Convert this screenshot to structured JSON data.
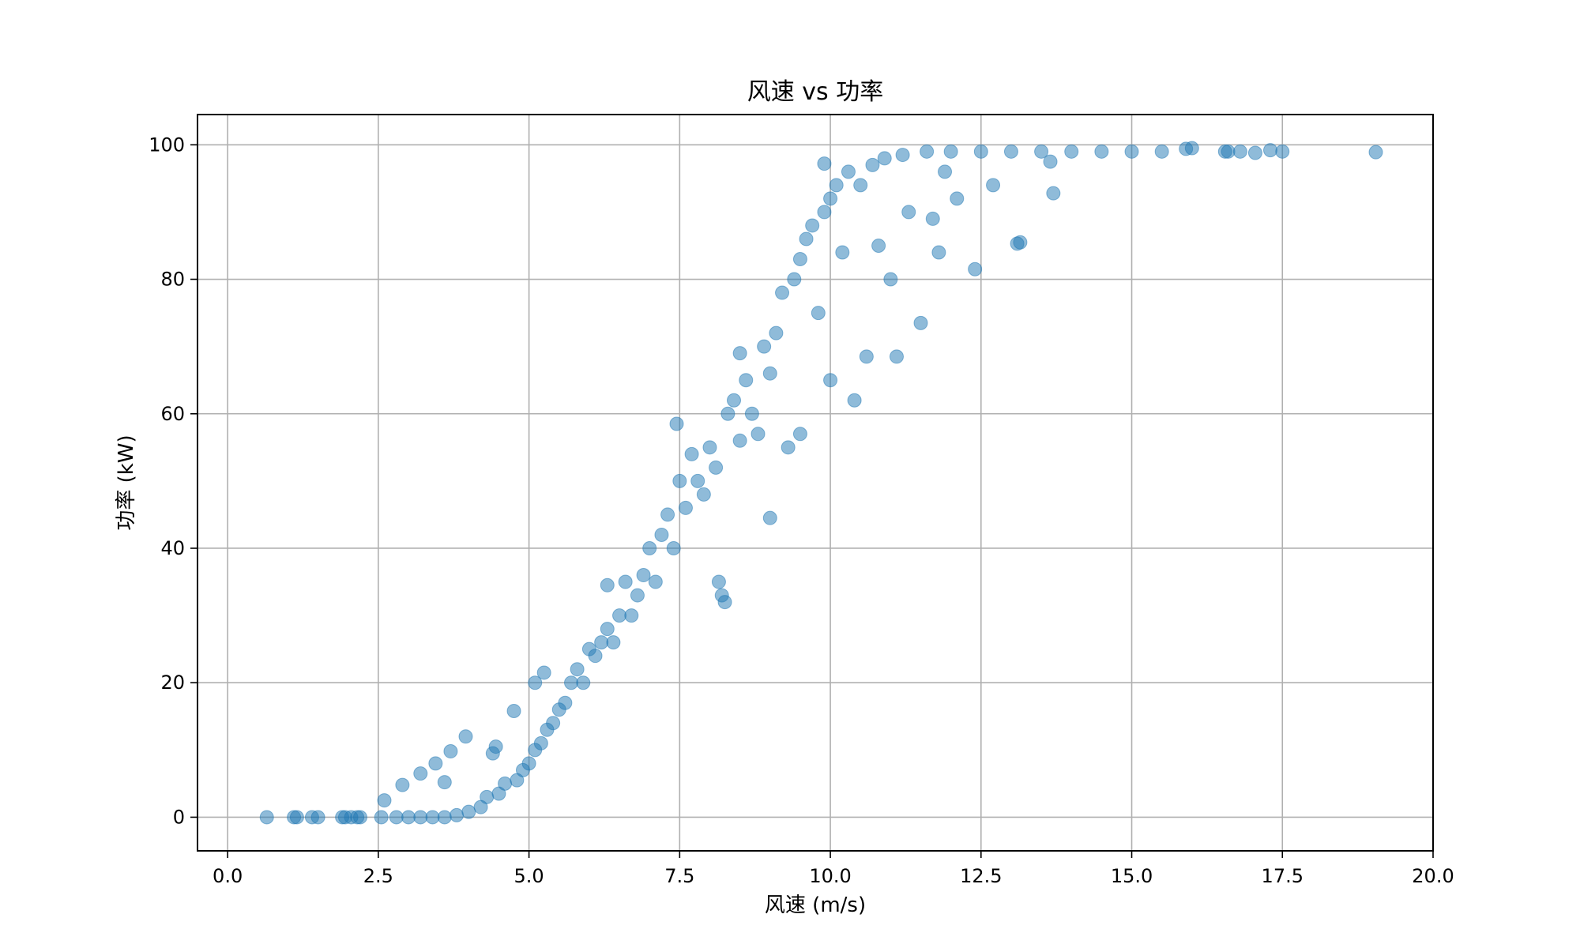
{
  "chart_data": {
    "type": "scatter",
    "title": "风速 vs 功率",
    "xlabel": "风速 (m/s)",
    "ylabel": "功率 (kW)",
    "xlim": [
      -0.5,
      20.0
    ],
    "ylim": [
      -5,
      104.5
    ],
    "xticks": [
      0.0,
      2.5,
      5.0,
      7.5,
      10.0,
      12.5,
      15.0,
      17.5,
      20.0
    ],
    "xtick_labels": [
      "0.0",
      "2.5",
      "5.0",
      "7.5",
      "10.0",
      "12.5",
      "15.0",
      "17.5",
      "20.0"
    ],
    "yticks": [
      0,
      20,
      40,
      60,
      80,
      100
    ],
    "ytick_labels": [
      "0",
      "20",
      "40",
      "60",
      "80",
      "100"
    ],
    "grid": true,
    "marker_color": "#1f77b4",
    "marker_alpha": 0.5,
    "points": [
      [
        0.65,
        0
      ],
      [
        1.1,
        0
      ],
      [
        1.15,
        0
      ],
      [
        1.4,
        0
      ],
      [
        1.5,
        0
      ],
      [
        1.9,
        0
      ],
      [
        1.95,
        0
      ],
      [
        2.05,
        0
      ],
      [
        2.15,
        0
      ],
      [
        2.2,
        0
      ],
      [
        2.55,
        0
      ],
      [
        2.6,
        2.5
      ],
      [
        2.8,
        0
      ],
      [
        2.9,
        4.8
      ],
      [
        3.0,
        0
      ],
      [
        3.2,
        0
      ],
      [
        3.2,
        6.5
      ],
      [
        3.4,
        0
      ],
      [
        3.45,
        8
      ],
      [
        3.6,
        0
      ],
      [
        3.6,
        5.2
      ],
      [
        3.7,
        9.8
      ],
      [
        3.8,
        0.3
      ],
      [
        3.95,
        12
      ],
      [
        4.0,
        0.8
      ],
      [
        4.2,
        1.5
      ],
      [
        4.3,
        3
      ],
      [
        4.4,
        9.5
      ],
      [
        4.45,
        10.5
      ],
      [
        4.5,
        3.5
      ],
      [
        4.6,
        5
      ],
      [
        4.75,
        15.8
      ],
      [
        4.8,
        5.5
      ],
      [
        4.9,
        7
      ],
      [
        5.0,
        8
      ],
      [
        5.1,
        10
      ],
      [
        5.1,
        20
      ],
      [
        5.2,
        11
      ],
      [
        5.3,
        13
      ],
      [
        5.25,
        21.5
      ],
      [
        5.4,
        14
      ],
      [
        5.5,
        16
      ],
      [
        5.6,
        17
      ],
      [
        5.7,
        20
      ],
      [
        5.8,
        22
      ],
      [
        5.9,
        20
      ],
      [
        6.0,
        25
      ],
      [
        6.1,
        24
      ],
      [
        6.2,
        26
      ],
      [
        6.3,
        34.5
      ],
      [
        6.3,
        28
      ],
      [
        6.4,
        26
      ],
      [
        6.5,
        30
      ],
      [
        6.6,
        35
      ],
      [
        6.7,
        30
      ],
      [
        6.8,
        33
      ],
      [
        6.9,
        36
      ],
      [
        7.0,
        40
      ],
      [
        7.1,
        35
      ],
      [
        7.2,
        42
      ],
      [
        7.3,
        45
      ],
      [
        7.4,
        40
      ],
      [
        7.45,
        58.5
      ],
      [
        7.5,
        50
      ],
      [
        7.6,
        46
      ],
      [
        7.7,
        54
      ],
      [
        7.8,
        50
      ],
      [
        7.9,
        48
      ],
      [
        8.0,
        55
      ],
      [
        8.1,
        52
      ],
      [
        8.15,
        35
      ],
      [
        8.2,
        33
      ],
      [
        8.25,
        32
      ],
      [
        8.3,
        60
      ],
      [
        8.4,
        62
      ],
      [
        8.5,
        69
      ],
      [
        8.5,
        56
      ],
      [
        8.6,
        65
      ],
      [
        8.7,
        60
      ],
      [
        8.8,
        57
      ],
      [
        8.9,
        70
      ],
      [
        9.0,
        66
      ],
      [
        9.0,
        44.5
      ],
      [
        9.1,
        72
      ],
      [
        9.2,
        78
      ],
      [
        9.3,
        55
      ],
      [
        9.4,
        80
      ],
      [
        9.5,
        83
      ],
      [
        9.5,
        57
      ],
      [
        9.6,
        86
      ],
      [
        9.7,
        88
      ],
      [
        9.8,
        75
      ],
      [
        9.9,
        90
      ],
      [
        9.9,
        97.2
      ],
      [
        10.0,
        92
      ],
      [
        10.0,
        65
      ],
      [
        10.1,
        94
      ],
      [
        10.2,
        84
      ],
      [
        10.3,
        96
      ],
      [
        10.4,
        62
      ],
      [
        10.5,
        94
      ],
      [
        10.6,
        68.5
      ],
      [
        10.7,
        97
      ],
      [
        10.8,
        85
      ],
      [
        10.9,
        98
      ],
      [
        11.0,
        80
      ],
      [
        11.1,
        68.5
      ],
      [
        11.2,
        98.5
      ],
      [
        11.3,
        90
      ],
      [
        11.5,
        73.5
      ],
      [
        11.6,
        99
      ],
      [
        11.7,
        89
      ],
      [
        11.8,
        84
      ],
      [
        11.9,
        96
      ],
      [
        12.0,
        99
      ],
      [
        12.1,
        92
      ],
      [
        12.4,
        81.5
      ],
      [
        12.5,
        99
      ],
      [
        12.7,
        94
      ],
      [
        13.0,
        99
      ],
      [
        13.1,
        85.3
      ],
      [
        13.15,
        85.5
      ],
      [
        13.5,
        99
      ],
      [
        13.65,
        97.5
      ],
      [
        13.7,
        92.8
      ],
      [
        14.0,
        99
      ],
      [
        14.5,
        99
      ],
      [
        15.0,
        99
      ],
      [
        15.5,
        99
      ],
      [
        15.9,
        99.4
      ],
      [
        16.0,
        99.5
      ],
      [
        16.55,
        99
      ],
      [
        16.6,
        99
      ],
      [
        16.8,
        99
      ],
      [
        17.05,
        98.8
      ],
      [
        17.3,
        99.2
      ],
      [
        17.5,
        99
      ],
      [
        19.05,
        98.9
      ]
    ]
  }
}
